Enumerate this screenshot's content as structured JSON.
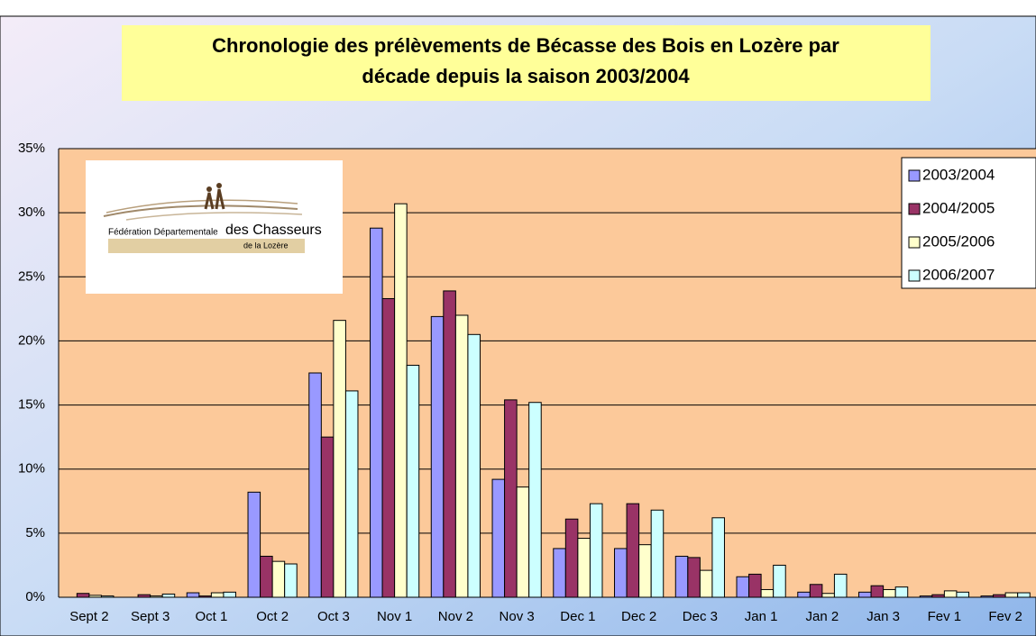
{
  "chart_data": {
    "type": "bar",
    "title": "Chronologie des prélèvements de Bécasse des Bois en Lozère par",
    "subtitle": "décade depuis la saison 2003/2004",
    "logo": {
      "line1": "Fédération Départementale",
      "line2": "des Chasseurs",
      "line3": "de la Lozère"
    },
    "categories": [
      "Sept 2",
      "Sept 3",
      "Oct 1",
      "Oct 2",
      "Oct 3",
      "Nov 1",
      "Nov 2",
      "Nov 3",
      "Dec 1",
      "Dec 2",
      "Dec 3",
      "Jan 1",
      "Jan 2",
      "Jan 3",
      "Fev 1",
      "Fev 2"
    ],
    "series": [
      {
        "name": "2003/2004",
        "color": "#9999ff",
        "values": [
          0,
          0,
          0.35,
          8.2,
          17.5,
          28.8,
          21.9,
          9.2,
          3.8,
          3.8,
          3.2,
          1.6,
          0.4,
          0.4,
          0.1,
          0.1
        ]
      },
      {
        "name": "2004/2005",
        "color": "#993366",
        "values": [
          0.3,
          0.2,
          0.1,
          3.2,
          12.5,
          23.3,
          23.9,
          15.4,
          6.1,
          7.3,
          3.1,
          1.8,
          1.0,
          0.9,
          0.2,
          0.2
        ]
      },
      {
        "name": "2005/2006",
        "color": "#ffffcc",
        "values": [
          0.15,
          0.1,
          0.35,
          2.8,
          21.6,
          30.7,
          22.0,
          8.6,
          4.6,
          4.1,
          2.1,
          0.6,
          0.3,
          0.6,
          0.5,
          0.35
        ]
      },
      {
        "name": "2006/2007",
        "color": "#ccffff",
        "values": [
          0.1,
          0.25,
          0.4,
          2.6,
          16.1,
          18.1,
          20.5,
          15.2,
          7.3,
          6.8,
          6.2,
          2.5,
          1.8,
          0.8,
          0.4,
          0.35
        ]
      }
    ],
    "ylim": [
      0,
      35
    ],
    "yticks": [
      {
        "value": 0,
        "label": "0%"
      },
      {
        "value": 5,
        "label": "5%"
      },
      {
        "value": 10,
        "label": "10%"
      },
      {
        "value": 15,
        "label": "15%"
      },
      {
        "value": 20,
        "label": "20%"
      },
      {
        "value": 25,
        "label": "25%"
      },
      {
        "value": 30,
        "label": "30%"
      },
      {
        "value": 35,
        "label": "35%"
      }
    ],
    "grid": true,
    "legend": "top-right"
  }
}
